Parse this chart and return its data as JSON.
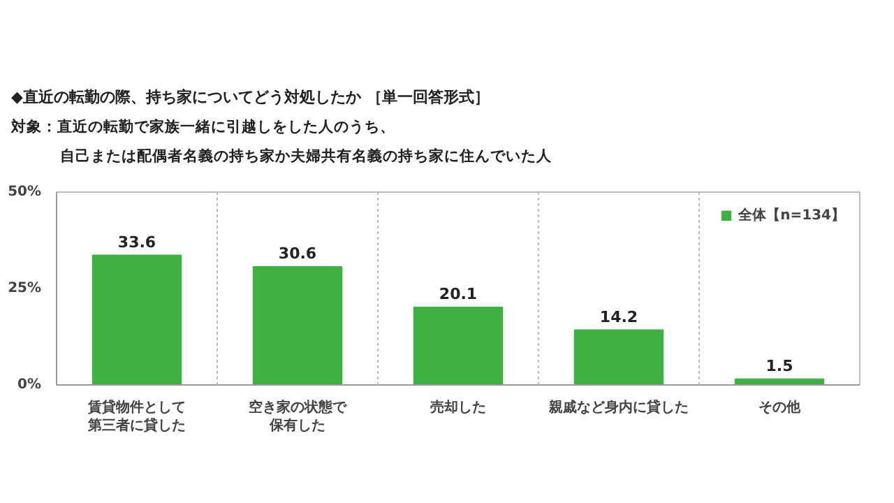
{
  "chart_data": {
    "type": "bar",
    "title": "◆直近の転勤の際、持ち家についてどう対処したか ［単一回答形式］",
    "subtitle": "対象：直近の転勤で家族一緒に引越しをした人のうち、自己または配偶者名義の持ち家か夫婦共有名義の持ち家に住んでいた人",
    "categories": [
      "賃貸物件として第三者に貸した",
      "空き家の状態で保有した",
      "売却した",
      "親戚など身内に貸した",
      "その他"
    ],
    "series": [
      {
        "name": "全体【n=134】",
        "color": "#3eb142",
        "values": [
          33.6,
          30.6,
          20.1,
          14.2,
          1.5
        ]
      }
    ],
    "ylim": [
      0,
      50
    ],
    "yticks": [
      {
        "value": 0,
        "label": "0%"
      },
      {
        "value": 25,
        "label": "25%"
      },
      {
        "value": 50,
        "label": "50%"
      }
    ],
    "data_labels": true,
    "legend": "top right"
  }
}
